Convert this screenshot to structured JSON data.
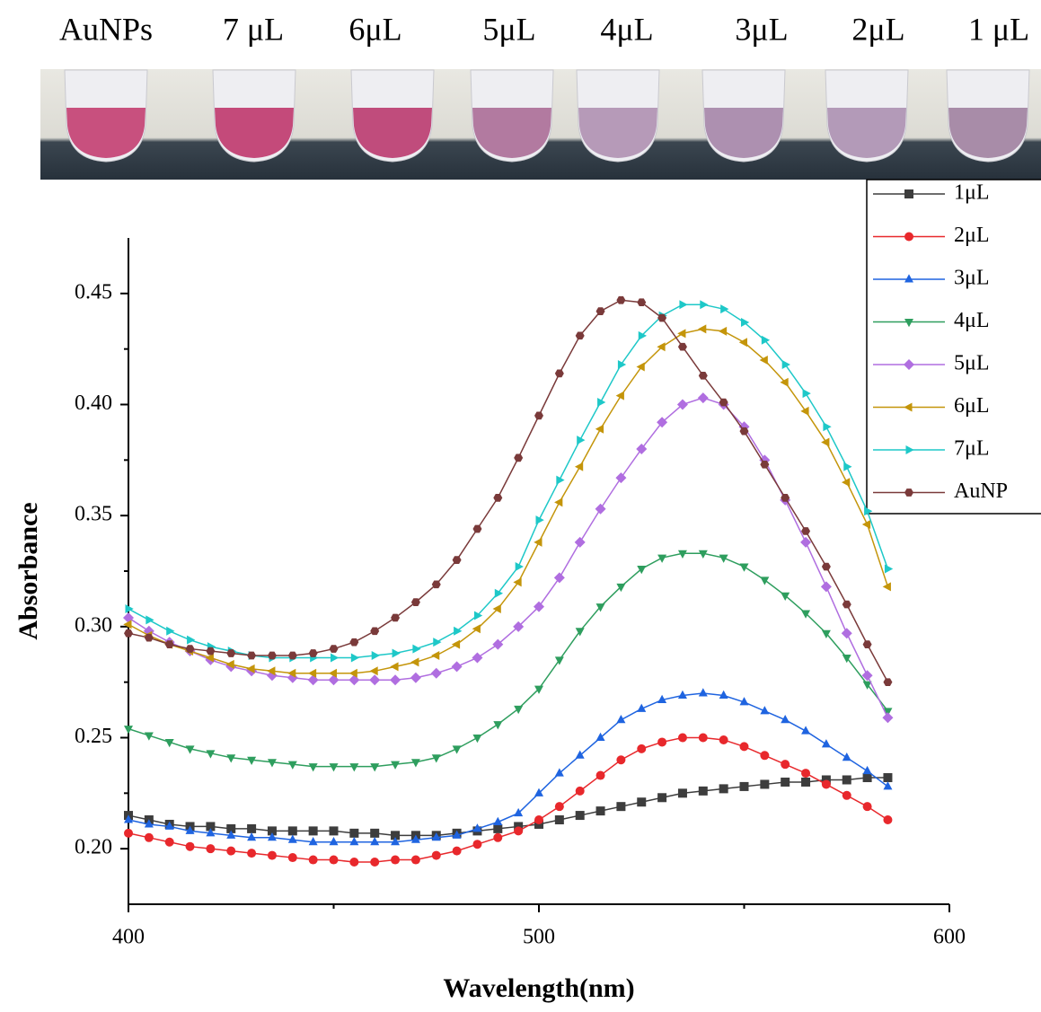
{
  "photo_labels": [
    "AuNPs",
    "7 μL",
    "6μL",
    "5μL",
    "4μL",
    "3μL",
    "2μL",
    "1 μL"
  ],
  "chart_data": {
    "type": "line",
    "xlabel": "Wavelength(nm)",
    "ylabel": "Absorbance",
    "xlim": [
      400,
      600
    ],
    "xticks": [
      400,
      500,
      600
    ],
    "xminorticks": [
      450,
      550
    ],
    "ylim": [
      0.175,
      0.475
    ],
    "yticks": [
      {
        "value": 0.2,
        "label": "0.20"
      },
      0.25,
      {
        "value": 0.3,
        "label": "0.30"
      },
      0.35,
      {
        "value": 0.4,
        "label": "0.40"
      },
      0.45
    ],
    "yminorticks": [
      0.225,
      0.275,
      0.325,
      0.375,
      0.425
    ],
    "legend": "upper right",
    "x": [
      400,
      405,
      410,
      415,
      420,
      425,
      430,
      435,
      440,
      445,
      450,
      455,
      460,
      465,
      470,
      475,
      480,
      485,
      490,
      495,
      500,
      505,
      510,
      515,
      520,
      525,
      530,
      535,
      540,
      545,
      550,
      555,
      560,
      565,
      570,
      575,
      580,
      585
    ],
    "series": [
      {
        "name": "1μL",
        "color": "#3d3d3d",
        "marker": "square",
        "values": [
          0.215,
          0.213,
          0.211,
          0.21,
          0.21,
          0.209,
          0.209,
          0.208,
          0.208,
          0.208,
          0.208,
          0.207,
          0.207,
          0.206,
          0.206,
          0.206,
          0.207,
          0.208,
          0.209,
          0.21,
          0.211,
          0.213,
          0.215,
          0.217,
          0.219,
          0.221,
          0.223,
          0.225,
          0.226,
          0.227,
          0.228,
          0.229,
          0.23,
          0.23,
          0.231,
          0.231,
          0.232,
          0.232
        ]
      },
      {
        "name": "2μL",
        "color": "#e8282c",
        "marker": "circle",
        "values": [
          0.207,
          0.205,
          0.203,
          0.201,
          0.2,
          0.199,
          0.198,
          0.197,
          0.196,
          0.195,
          0.195,
          0.194,
          0.194,
          0.195,
          0.195,
          0.197,
          0.199,
          0.202,
          0.205,
          0.208,
          0.213,
          0.219,
          0.226,
          0.233,
          0.24,
          0.245,
          0.248,
          0.25,
          0.25,
          0.249,
          0.246,
          0.242,
          0.238,
          0.234,
          0.229,
          0.224,
          0.219,
          0.213
        ]
      },
      {
        "name": "3μL",
        "color": "#1f64e0",
        "marker": "triangle-up",
        "values": [
          0.213,
          0.211,
          0.21,
          0.208,
          0.207,
          0.206,
          0.205,
          0.205,
          0.204,
          0.203,
          0.203,
          0.203,
          0.203,
          0.203,
          0.204,
          0.205,
          0.206,
          0.209,
          0.212,
          0.216,
          0.225,
          0.234,
          0.242,
          0.25,
          0.258,
          0.263,
          0.267,
          0.269,
          0.27,
          0.269,
          0.266,
          0.262,
          0.258,
          0.253,
          0.247,
          0.241,
          0.235,
          0.228
        ]
      },
      {
        "name": "4μL",
        "color": "#2e9e5e",
        "marker": "triangle-down",
        "values": [
          0.254,
          0.251,
          0.248,
          0.245,
          0.243,
          0.241,
          0.24,
          0.239,
          0.238,
          0.237,
          0.237,
          0.237,
          0.237,
          0.238,
          0.239,
          0.241,
          0.245,
          0.25,
          0.256,
          0.263,
          0.272,
          0.285,
          0.298,
          0.309,
          0.318,
          0.326,
          0.331,
          0.333,
          0.333,
          0.331,
          0.327,
          0.321,
          0.314,
          0.306,
          0.297,
          0.286,
          0.274,
          0.262
        ]
      },
      {
        "name": "5μL",
        "color": "#b06ee0",
        "marker": "diamond",
        "values": [
          0.304,
          0.298,
          0.293,
          0.289,
          0.285,
          0.282,
          0.28,
          0.278,
          0.277,
          0.276,
          0.276,
          0.276,
          0.276,
          0.276,
          0.277,
          0.279,
          0.282,
          0.286,
          0.292,
          0.3,
          0.309,
          0.322,
          0.338,
          0.353,
          0.367,
          0.38,
          0.392,
          0.4,
          0.403,
          0.4,
          0.39,
          0.375,
          0.357,
          0.338,
          0.318,
          0.297,
          0.278,
          0.259
        ]
      },
      {
        "name": "6μL",
        "color": "#c4950a",
        "marker": "triangle-left",
        "values": [
          0.301,
          0.296,
          0.292,
          0.289,
          0.286,
          0.283,
          0.281,
          0.28,
          0.279,
          0.279,
          0.279,
          0.279,
          0.28,
          0.282,
          0.284,
          0.287,
          0.292,
          0.299,
          0.308,
          0.32,
          0.338,
          0.356,
          0.372,
          0.389,
          0.404,
          0.417,
          0.426,
          0.432,
          0.434,
          0.433,
          0.428,
          0.42,
          0.41,
          0.397,
          0.383,
          0.365,
          0.346,
          0.318
        ]
      },
      {
        "name": "7μL",
        "color": "#1ec8c8",
        "marker": "triangle-right",
        "values": [
          0.308,
          0.303,
          0.298,
          0.294,
          0.291,
          0.289,
          0.287,
          0.286,
          0.286,
          0.286,
          0.286,
          0.286,
          0.287,
          0.288,
          0.29,
          0.293,
          0.298,
          0.305,
          0.315,
          0.327,
          0.348,
          0.366,
          0.384,
          0.401,
          0.418,
          0.431,
          0.44,
          0.445,
          0.445,
          0.443,
          0.437,
          0.429,
          0.418,
          0.405,
          0.39,
          0.372,
          0.352,
          0.326
        ]
      },
      {
        "name": "AuNP",
        "color": "#7a3a3a",
        "marker": "hexagon",
        "values": [
          0.297,
          0.295,
          0.292,
          0.29,
          0.289,
          0.288,
          0.287,
          0.287,
          0.287,
          0.288,
          0.29,
          0.293,
          0.298,
          0.304,
          0.311,
          0.319,
          0.33,
          0.344,
          0.358,
          0.376,
          0.395,
          0.414,
          0.431,
          0.442,
          0.447,
          0.446,
          0.439,
          0.426,
          0.413,
          0.401,
          0.388,
          0.373,
          0.358,
          0.343,
          0.327,
          0.31,
          0.292,
          0.275
        ]
      }
    ]
  }
}
